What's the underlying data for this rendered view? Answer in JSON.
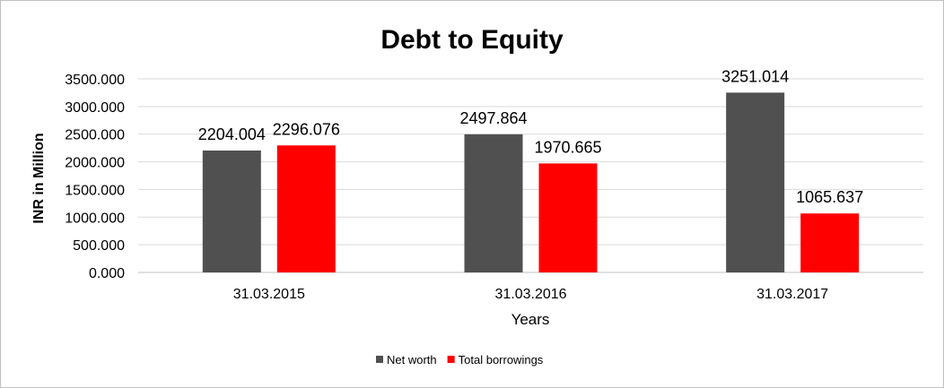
{
  "chart_data": {
    "type": "bar",
    "title": "Debt to Equity",
    "xlabel": "Years",
    "ylabel": "INR in Million",
    "categories": [
      "31.03.2015",
      "31.03.2016",
      "31.03.2017"
    ],
    "series": [
      {
        "name": "Net worth",
        "color": "#505050",
        "values": [
          2204.004,
          2497.864,
          3251.014
        ],
        "labels": [
          "2204.004",
          "2497.864",
          "3251.014"
        ]
      },
      {
        "name": "Total borrowings",
        "color": "#ff0000",
        "values": [
          2296.076,
          1970.665,
          1065.637
        ],
        "labels": [
          "2296.076",
          "1970.665",
          "1065.637"
        ]
      }
    ],
    "ylim": [
      0,
      3500
    ],
    "yticks": [
      0,
      500,
      1000,
      1500,
      2000,
      2500,
      3000,
      3500
    ],
    "ytick_labels": [
      "0.000",
      "500.000",
      "1000.000",
      "1500.000",
      "2000.000",
      "2500.000",
      "3000.000",
      "3500.000"
    ],
    "grid": true,
    "legend_position": "bottom"
  }
}
